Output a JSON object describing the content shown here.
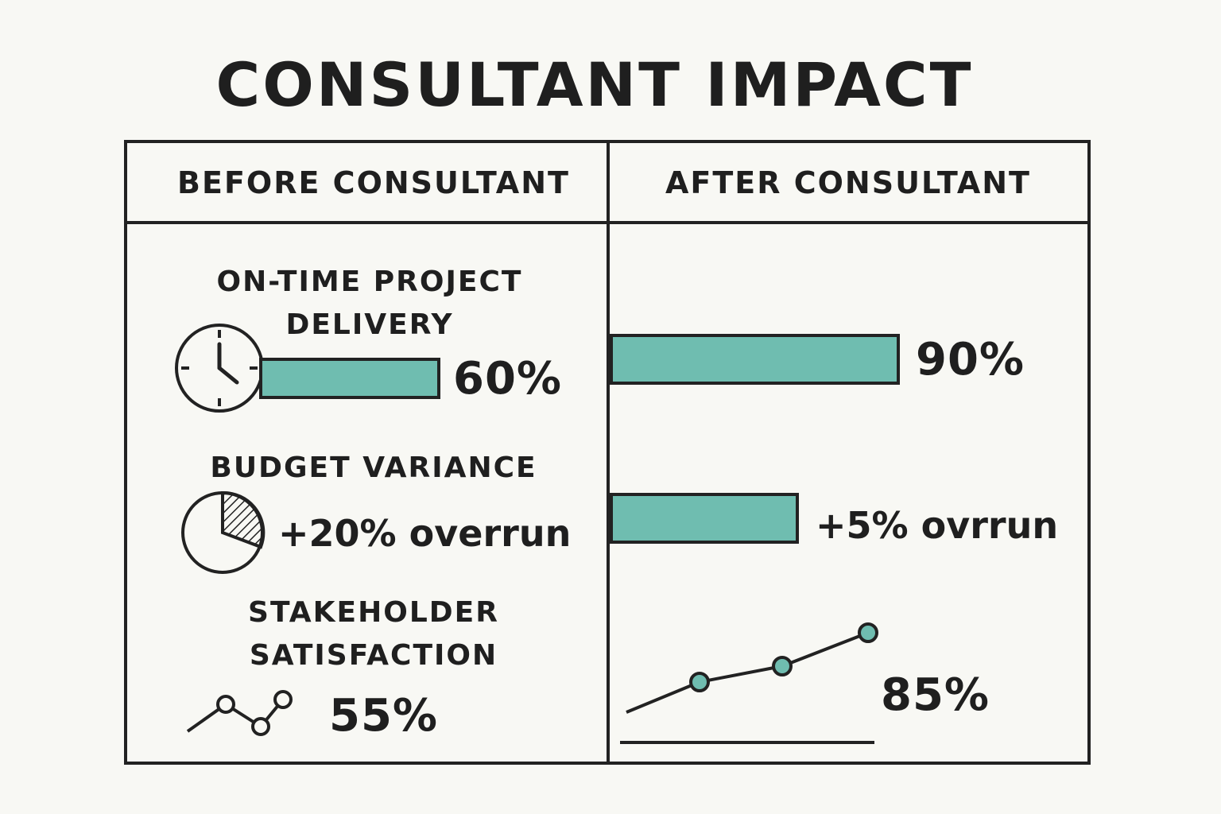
{
  "title": "CONSULTANT IMPACT",
  "columns": {
    "before": "BEFORE CONSULTANT",
    "after": "AFTER CONSULTANT"
  },
  "metrics": {
    "ontime": {
      "label_line1": "ON-TIME PROJECT",
      "label_line2": "DELIVERY",
      "before_value": "60%",
      "after_value": "90%",
      "before_pct": 60,
      "after_pct": 90
    },
    "budget": {
      "label": "BUDGET VARIANCE",
      "before_value": "+20% overrun",
      "after_value": "+5% ovrrun"
    },
    "satisfaction": {
      "label_line1": "STAKEHOLDER",
      "label_line2": "SATISFACTION",
      "before_value": "55%",
      "after_value": "85%"
    }
  },
  "colors": {
    "accent": "#6fbdb0",
    "ink": "#222222",
    "background": "#f8f8f4"
  },
  "icons": [
    "clock-icon",
    "pie-chart-icon",
    "trend-line-icon"
  ]
}
